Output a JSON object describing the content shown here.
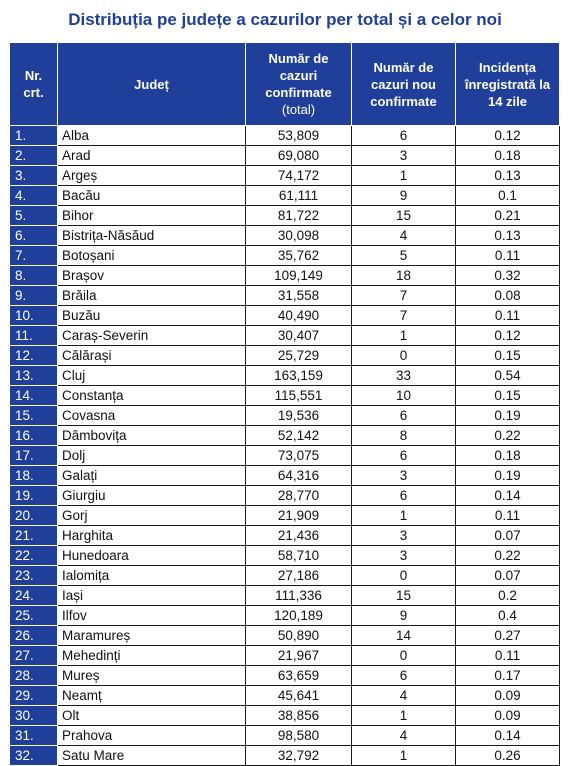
{
  "title": "Distribuția pe județe a cazurilor per total și a celor noi",
  "headers": {
    "nr_line1": "Nr.",
    "nr_line2": "crt.",
    "county": "Județ",
    "total_line1": "Număr de",
    "total_line2": "cazuri",
    "total_line3": "confirmate",
    "total_line4": "(total)",
    "new_line1": "Număr de",
    "new_line2": "cazuri nou",
    "new_line3": "confirmate",
    "inc_line1": "Incidența",
    "inc_line2": "înregistrată la",
    "inc_line3": "14 zile"
  },
  "colors": {
    "header_bg": "#1f3f9a",
    "title_text": "#1f3f9a"
  },
  "rows": [
    {
      "nr": "1.",
      "county": "Alba",
      "total": "53,809",
      "new": "6",
      "incidence": "0.12"
    },
    {
      "nr": "2.",
      "county": "Arad",
      "total": "69,080",
      "new": "3",
      "incidence": "0.18"
    },
    {
      "nr": "3.",
      "county": "Argeș",
      "total": "74,172",
      "new": "1",
      "incidence": "0.13"
    },
    {
      "nr": "4.",
      "county": "Bacău",
      "total": "61,111",
      "new": "9",
      "incidence": "0.1"
    },
    {
      "nr": "5.",
      "county": "Bihor",
      "total": "81,722",
      "new": "15",
      "incidence": "0.21"
    },
    {
      "nr": "6.",
      "county": "Bistrița-Năsăud",
      "total": "30,098",
      "new": "4",
      "incidence": "0.13"
    },
    {
      "nr": "7.",
      "county": "Botoșani",
      "total": "35,762",
      "new": "5",
      "incidence": "0.11"
    },
    {
      "nr": "8.",
      "county": "Brașov",
      "total": "109,149",
      "new": "18",
      "incidence": "0.32"
    },
    {
      "nr": "9.",
      "county": "Brăila",
      "total": "31,558",
      "new": "7",
      "incidence": "0.08"
    },
    {
      "nr": "10.",
      "county": "Buzău",
      "total": "40,490",
      "new": "7",
      "incidence": "0.11"
    },
    {
      "nr": "11.",
      "county": "Caraș-Severin",
      "total": "30,407",
      "new": "1",
      "incidence": "0.12"
    },
    {
      "nr": "12.",
      "county": "Călărași",
      "total": "25,729",
      "new": "0",
      "incidence": "0.15"
    },
    {
      "nr": "13.",
      "county": "Cluj",
      "total": "163,159",
      "new": "33",
      "incidence": "0.54"
    },
    {
      "nr": "14.",
      "county": "Constanța",
      "total": "115,551",
      "new": "10",
      "incidence": "0.15"
    },
    {
      "nr": "15.",
      "county": "Covasna",
      "total": "19,536",
      "new": "6",
      "incidence": "0.19"
    },
    {
      "nr": "16.",
      "county": "Dâmbovița",
      "total": "52,142",
      "new": "8",
      "incidence": "0.22"
    },
    {
      "nr": "17.",
      "county": "Dolj",
      "total": "73,075",
      "new": "6",
      "incidence": "0.18"
    },
    {
      "nr": "18.",
      "county": "Galați",
      "total": "64,316",
      "new": "3",
      "incidence": "0.19"
    },
    {
      "nr": "19.",
      "county": "Giurgiu",
      "total": "28,770",
      "new": "6",
      "incidence": "0.14"
    },
    {
      "nr": "20.",
      "county": "Gorj",
      "total": "21,909",
      "new": "1",
      "incidence": "0.11"
    },
    {
      "nr": "21.",
      "county": "Harghita",
      "total": "21,436",
      "new": "3",
      "incidence": "0.07"
    },
    {
      "nr": "22.",
      "county": "Hunedoara",
      "total": "58,710",
      "new": "3",
      "incidence": "0.22"
    },
    {
      "nr": "23.",
      "county": "Ialomița",
      "total": "27,186",
      "new": "0",
      "incidence": "0.07"
    },
    {
      "nr": "24.",
      "county": "Iași",
      "total": "111,336",
      "new": "15",
      "incidence": "0.2"
    },
    {
      "nr": "25.",
      "county": "Ilfov",
      "total": "120,189",
      "new": "9",
      "incidence": "0.4"
    },
    {
      "nr": "26.",
      "county": "Maramureș",
      "total": "50,890",
      "new": "14",
      "incidence": "0.27"
    },
    {
      "nr": "27.",
      "county": "Mehedinți",
      "total": "21,967",
      "new": "0",
      "incidence": "0.11"
    },
    {
      "nr": "28.",
      "county": "Mureș",
      "total": "63,659",
      "new": "6",
      "incidence": "0.17"
    },
    {
      "nr": "29.",
      "county": "Neamț",
      "total": "45,641",
      "new": "4",
      "incidence": "0.09"
    },
    {
      "nr": "30.",
      "county": "Olt",
      "total": "38,856",
      "new": "1",
      "incidence": "0.09"
    },
    {
      "nr": "31.",
      "county": "Prahova",
      "total": "98,580",
      "new": "4",
      "incidence": "0.14"
    },
    {
      "nr": "32.",
      "county": "Satu Mare",
      "total": "32,792",
      "new": "1",
      "incidence": "0.26"
    }
  ]
}
